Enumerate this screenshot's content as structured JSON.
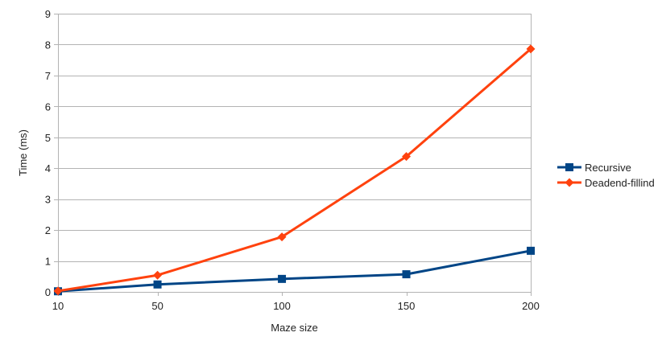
{
  "chart_data": {
    "type": "line",
    "title": "",
    "xlabel": "Maze size",
    "ylabel": "Time (ms)",
    "x": [
      10,
      50,
      100,
      150,
      200
    ],
    "x_tick_labels": [
      "10",
      "50",
      "100",
      "150",
      "200"
    ],
    "ylim": [
      0,
      9
    ],
    "y_ticks": [
      0,
      1,
      2,
      3,
      4,
      5,
      6,
      7,
      8,
      9
    ],
    "y_tick_labels": [
      "0",
      "1",
      "2",
      "3",
      "4",
      "5",
      "6",
      "7",
      "8",
      "9"
    ],
    "grid": "horizontal",
    "legend_position": "right",
    "series": [
      {
        "name": "Recursive",
        "values": [
          0.02,
          0.24,
          0.42,
          0.57,
          1.33
        ],
        "color": "#004586",
        "marker": "square"
      },
      {
        "name": "Deadend-fillind",
        "values": [
          0.03,
          0.54,
          1.78,
          4.38,
          7.86
        ],
        "color": "#ff420e",
        "marker": "diamond"
      }
    ]
  }
}
